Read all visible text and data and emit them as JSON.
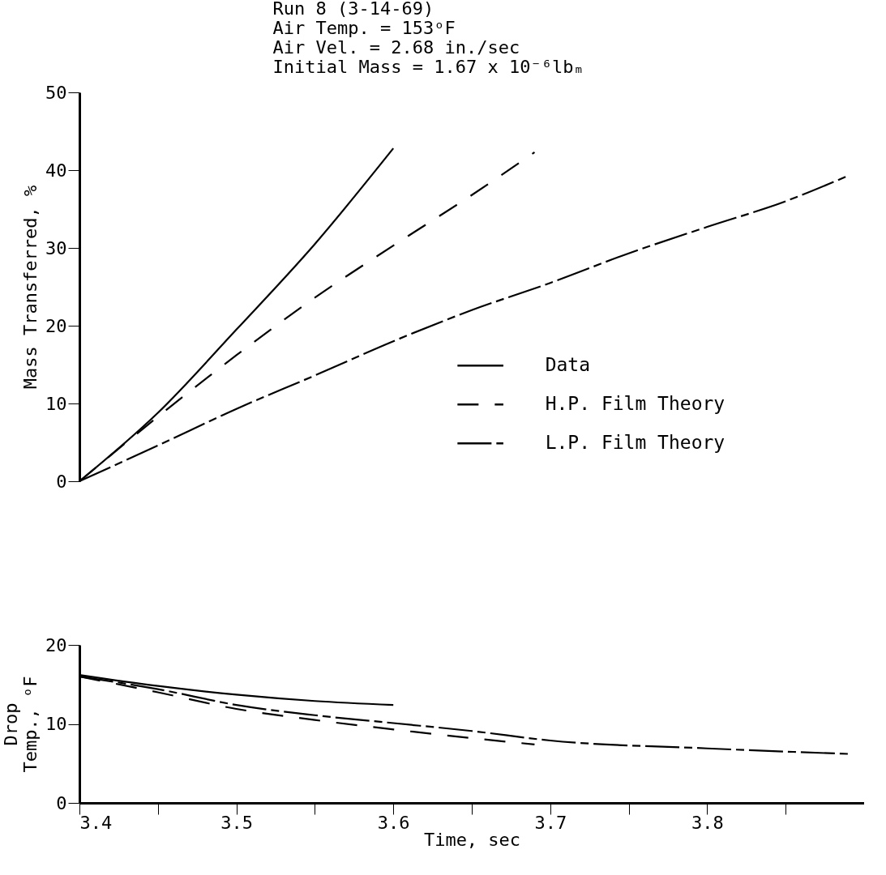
{
  "chart_data": [
    {
      "type": "line",
      "ylabel": "Mass Transferred, %",
      "annotations": [
        "Run 8 (3-14-69)",
        "Air Temp. = 153ᵒF",
        "Air Vel. = 2.68 in./sec",
        "Initial Mass = 1.67 x 10⁻⁶lbₘ"
      ],
      "xlim": [
        3.4,
        3.9
      ],
      "ylim": [
        0,
        50
      ],
      "yticks": [
        0,
        10,
        20,
        30,
        40,
        50
      ],
      "tick_labels": "y",
      "grid": false,
      "legend": "right",
      "series": [
        {
          "name": "Data",
          "color": "#000000",
          "line_style": "solid",
          "x": [
            3.4,
            3.45,
            3.5,
            3.55,
            3.6
          ],
          "values": [
            0,
            8.8,
            19.5,
            30.5,
            42.8
          ]
        },
        {
          "name": "H.P. Film Theory",
          "color": "#000000",
          "line_style": "dashed",
          "x": [
            3.4,
            3.45,
            3.5,
            3.55,
            3.6,
            3.65,
            3.69
          ],
          "values": [
            0,
            8.3,
            16.2,
            23.6,
            30.3,
            36.8,
            42.3
          ]
        },
        {
          "name": "L.P. Film Theory",
          "color": "#000000",
          "line_style": "dashed",
          "x": [
            3.4,
            3.45,
            3.5,
            3.55,
            3.6,
            3.65,
            3.7,
            3.75,
            3.8,
            3.85,
            3.89
          ],
          "values": [
            0,
            4.6,
            9.3,
            13.6,
            18.0,
            22.0,
            25.5,
            29.3,
            32.7,
            36.0,
            39.3
          ]
        }
      ]
    },
    {
      "type": "line",
      "xlabel": "Time, sec",
      "ylabel": "Drop\nTemp., ᵒF",
      "xlim": [
        3.4,
        3.9
      ],
      "xticks": [
        3.4,
        {
          "value": 3.45,
          "label": null
        },
        3.5,
        {
          "value": 3.55,
          "label": null
        },
        3.6,
        {
          "value": 3.65,
          "label": null
        },
        3.7,
        {
          "value": 3.75,
          "label": null
        },
        3.8,
        {
          "value": 3.85,
          "label": null
        }
      ],
      "ylim": [
        0,
        20
      ],
      "yticks": [
        0,
        10,
        20
      ],
      "grid": false,
      "series": [
        {
          "color": "#000000",
          "line_style": "solid",
          "x": [
            3.4,
            3.45,
            3.5,
            3.55,
            3.6
          ],
          "values": [
            16.2,
            14.8,
            13.7,
            12.9,
            12.4
          ]
        },
        {
          "color": "#000000",
          "line_style": "dashed",
          "x": [
            3.4,
            3.45,
            3.5,
            3.55,
            3.6,
            3.65,
            3.69
          ],
          "values": [
            16.0,
            14.0,
            11.9,
            10.5,
            9.3,
            8.2,
            7.4
          ]
        },
        {
          "color": "#000000",
          "line_style": "dashed",
          "x": [
            3.4,
            3.45,
            3.5,
            3.55,
            3.6,
            3.65,
            3.7,
            3.8,
            3.89
          ],
          "values": [
            16.0,
            14.4,
            12.4,
            11.1,
            10.1,
            9.1,
            7.9,
            6.9,
            6.2
          ]
        }
      ]
    }
  ]
}
